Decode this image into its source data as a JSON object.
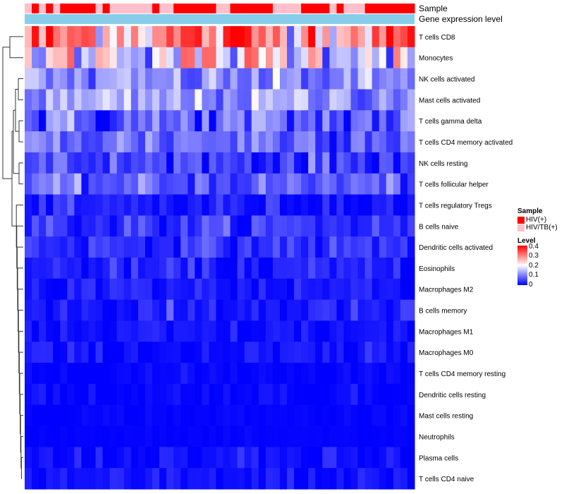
{
  "chart_data": {
    "type": "heatmap",
    "title": "",
    "annotation_tracks": [
      "Sample",
      "Gene expression level"
    ],
    "rows": [
      "T cells CD8",
      "Monocytes",
      "NK cells activated",
      "Mast cells activated",
      "T cells gamma delta",
      "T cells CD4 memory activated",
      "NK cells resting",
      "T cells follicular helper",
      "T cells regulatory  Tregs",
      "B cells naive",
      "Dendritic cells activated",
      "Eosinophils",
      "Macrophages M2",
      "B cells memory",
      "Macrophages M1",
      "Macrophages M0",
      "T cells CD4 memory resting",
      "Dendritic cells resting",
      "Mast cells resting",
      "Neutrophils",
      "Plasma cells",
      "T cells CD4 naive"
    ],
    "sample_groups": [
      "T",
      "H",
      "T",
      "H",
      "T",
      "H",
      "H",
      "H",
      "H",
      "H",
      "T",
      "H",
      "T",
      "T",
      "T",
      "T",
      "T",
      "T",
      "H",
      "T",
      "T",
      "H",
      "H",
      "H",
      "H",
      "H",
      "H",
      "T",
      "T",
      "H",
      "H",
      "H",
      "H",
      "H",
      "H",
      "T",
      "T",
      "T",
      "T",
      "H",
      "H",
      "H",
      "H",
      "T",
      "H",
      "T",
      "T",
      "T",
      "H",
      "H",
      "H",
      "H",
      "H",
      "H",
      "H"
    ],
    "row_means": [
      0.28,
      0.2,
      0.1,
      0.12,
      0.07,
      0.09,
      0.05,
      0.07,
      0.02,
      0.04,
      0.04,
      0.02,
      0.02,
      0.02,
      0.01,
      0.01,
      0.005,
      0.005,
      0.003,
      0.002,
      0.01,
      0.01
    ],
    "row_sd": [
      0.08,
      0.08,
      0.04,
      0.04,
      0.05,
      0.04,
      0.035,
      0.03,
      0.02,
      0.025,
      0.02,
      0.02,
      0.02,
      0.02,
      0.015,
      0.015,
      0.008,
      0.01,
      0.004,
      0.002,
      0.015,
      0.015
    ],
    "value_range": [
      0,
      0.4
    ],
    "legend": {
      "sample_title": "Sample",
      "sample_items": [
        {
          "label": "HIV(+)",
          "color": "#FF0000"
        },
        {
          "label": "HIV/TB(+)",
          "color": "#FFC0CB"
        }
      ],
      "level_title": "Level",
      "level_ticks": [
        "0.4",
        "0.3",
        "0.2",
        "0.1",
        "0"
      ],
      "level_colors": [
        "#0000FF",
        "#FFFFFF",
        "#FF0000"
      ]
    },
    "expression_track_color": "#87CEEB"
  }
}
